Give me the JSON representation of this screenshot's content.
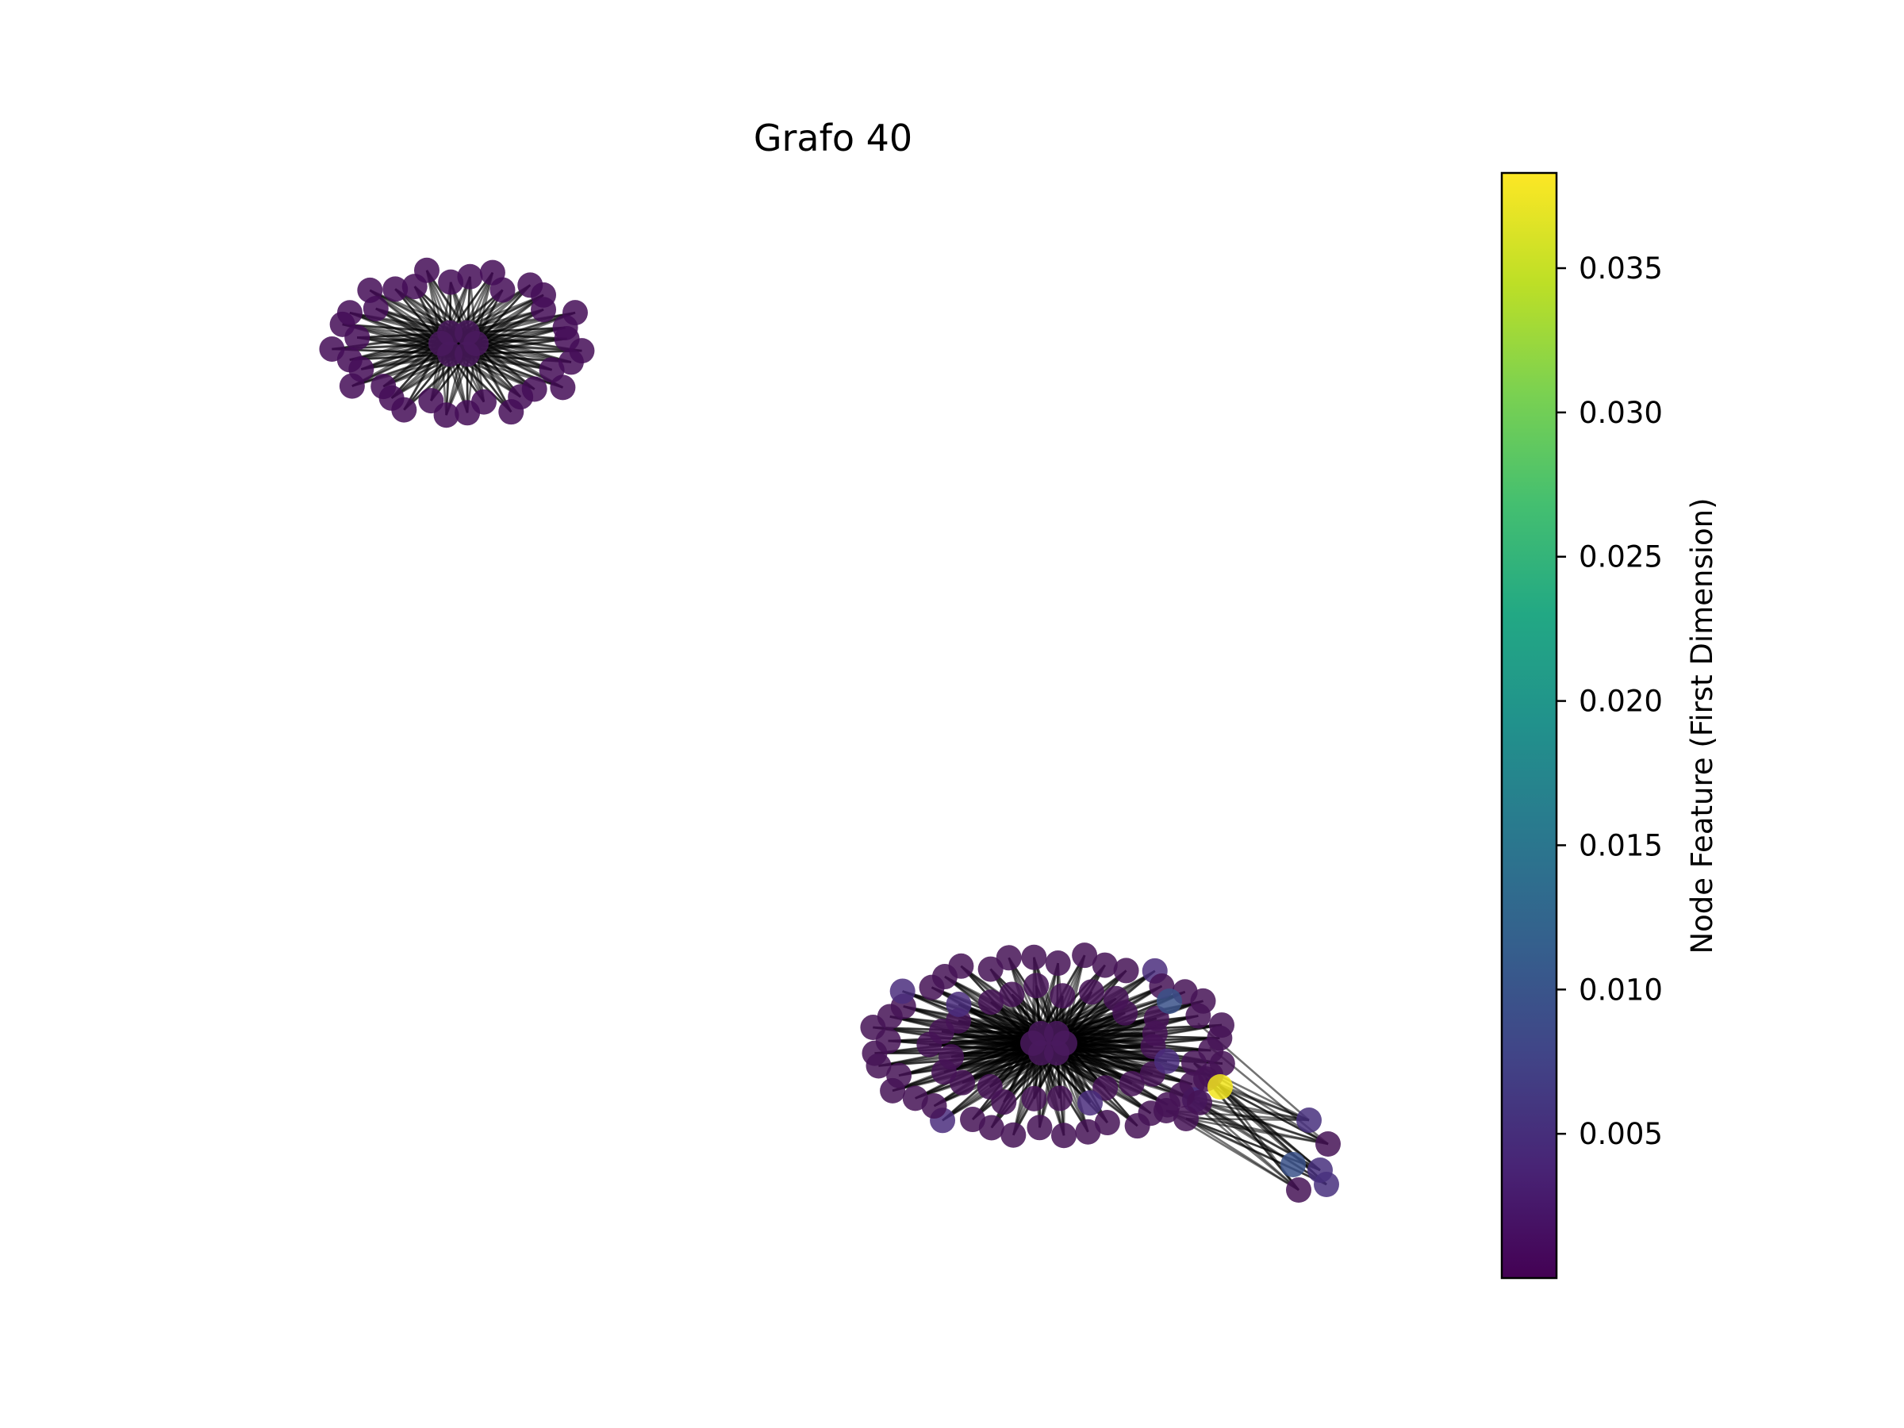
{
  "figure": {
    "title": "Grafo 40"
  },
  "colorbar": {
    "label": "Node Feature (First Dimension)",
    "colormap": "viridis",
    "vmin": 0.0,
    "vmax": 0.0383,
    "ticks": [
      "0.005",
      "0.010",
      "0.015",
      "0.020",
      "0.025",
      "0.030",
      "0.035"
    ],
    "tick_values": [
      0.005,
      0.01,
      0.015,
      0.02,
      0.025,
      0.03,
      0.035
    ]
  },
  "graph": {
    "components": [
      {
        "name": "upper-left-cluster",
        "hubs": 6,
        "leaves": 36,
        "node_color": "#440d57"
      },
      {
        "name": "lower-right-cluster",
        "hubs": 6,
        "leaves": 70,
        "node_color": "#451356"
      }
    ],
    "highlighted_node_color": "#f2e51d",
    "tail_node_color": "#3b5289"
  }
}
